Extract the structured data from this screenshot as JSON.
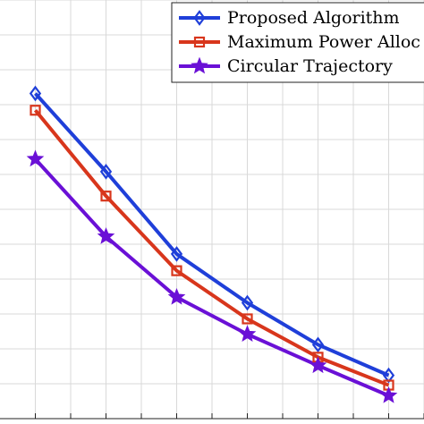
{
  "chart_data": {
    "type": "line",
    "title": "",
    "xlabel": "",
    "ylabel": "",
    "x": [
      1,
      2,
      3,
      4,
      5,
      6
    ],
    "xlim": [
      0.5,
      6.5
    ],
    "ylim": [
      0,
      6
    ],
    "grid": true,
    "legend_position": "top-right",
    "series": [
      {
        "name": "Proposed Algorithm",
        "color": "#1f3fd9",
        "marker": "diamond",
        "values": [
          4.66,
          3.54,
          2.36,
          1.66,
          1.06,
          0.62
        ]
      },
      {
        "name": "Maximum Power Alloc",
        "color": "#d8361c",
        "marker": "square",
        "values": [
          4.42,
          3.19,
          2.12,
          1.43,
          0.88,
          0.48
        ]
      },
      {
        "name": "Circular Trajectory",
        "color": "#6a10d6",
        "marker": "star",
        "values": [
          3.72,
          2.61,
          1.74,
          1.21,
          0.76,
          0.33
        ]
      }
    ]
  }
}
